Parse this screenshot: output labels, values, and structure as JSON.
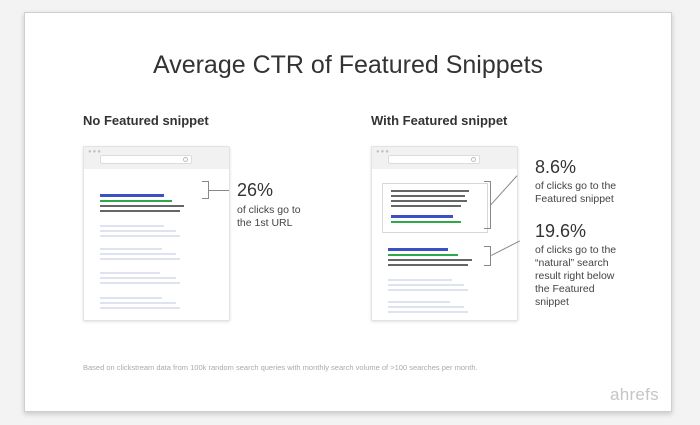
{
  "title": "Average CTR of Featured Snippets",
  "left": {
    "heading": "No Featured snippet",
    "percent": "26%",
    "caption_lines": [
      "of clicks go to",
      "the 1st URL"
    ]
  },
  "right": {
    "heading": "With Featured snippet",
    "featured": {
      "percent": "8.6%",
      "caption_lines": [
        "of clicks go to the",
        "Featured snippet"
      ]
    },
    "natural": {
      "percent": "19.6%",
      "caption_lines": [
        "of clicks go to the",
        "“natural” search",
        "result right below",
        "the Featured",
        "snippet"
      ]
    }
  },
  "footnote": "Based on clickstream data from 100k random search queries with monthly search volume of >100 searches per month.",
  "brand": "ahrefs",
  "colors": {
    "blue": "#3c4fc4",
    "green": "#2ea84a",
    "gray_line": "#666666",
    "light_line": "#dfe3f1"
  }
}
